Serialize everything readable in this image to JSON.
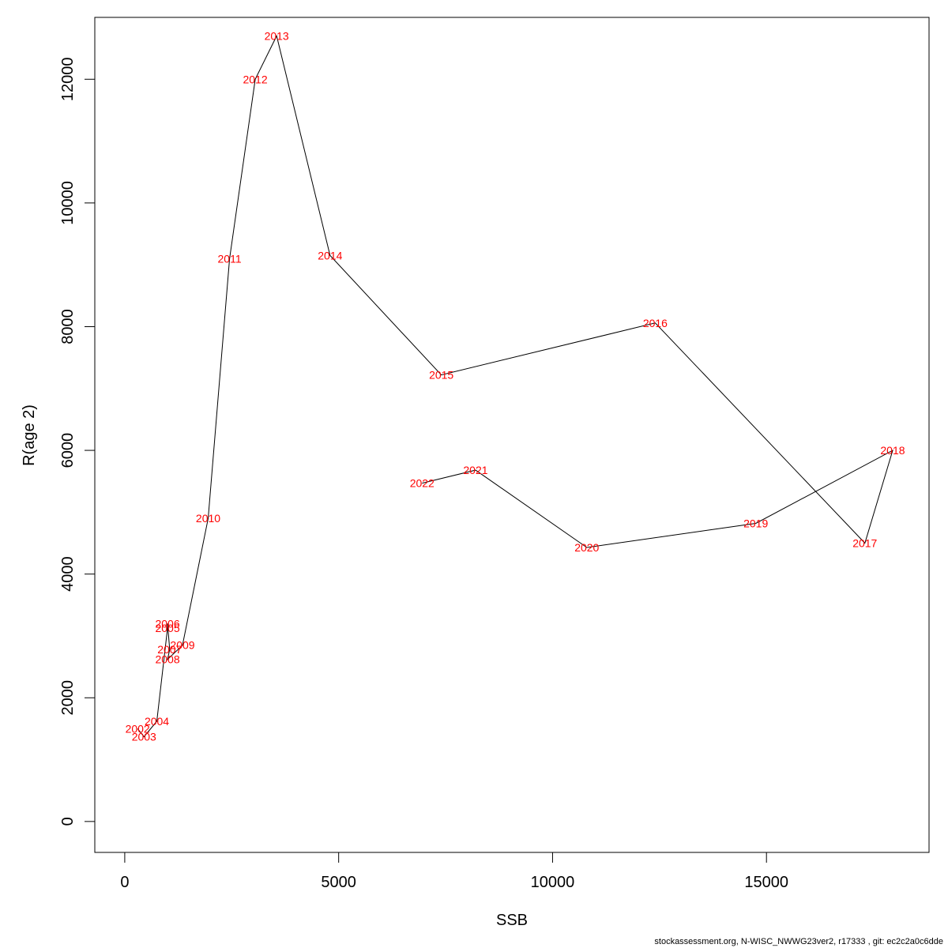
{
  "chart_data": {
    "type": "line",
    "title": "",
    "xlabel": "SSB",
    "ylabel": "R(age 2)",
    "xlim": [
      -700,
      18800
    ],
    "ylim": [
      -500,
      13000
    ],
    "xticks": [
      0,
      5000,
      10000,
      15000
    ],
    "yticks": [
      0,
      2000,
      4000,
      6000,
      8000,
      10000,
      12000
    ],
    "grid": false,
    "label_color": "#ff0000",
    "line_color": "#000000",
    "points": [
      {
        "label": "2002",
        "x": 300,
        "y": 1500
      },
      {
        "label": "2003",
        "x": 450,
        "y": 1370
      },
      {
        "label": "2004",
        "x": 750,
        "y": 1620
      },
      {
        "label": "2005",
        "x": 1000,
        "y": 3130
      },
      {
        "label": "2006",
        "x": 1000,
        "y": 3200
      },
      {
        "label": "2007",
        "x": 1050,
        "y": 2780
      },
      {
        "label": "2008",
        "x": 1000,
        "y": 2620
      },
      {
        "label": "2009",
        "x": 1350,
        "y": 2850
      },
      {
        "label": "2010",
        "x": 1950,
        "y": 4900
      },
      {
        "label": "2011",
        "x": 2450,
        "y": 9100
      },
      {
        "label": "2012",
        "x": 3050,
        "y": 12000
      },
      {
        "label": "2013",
        "x": 3550,
        "y": 12700
      },
      {
        "label": "2014",
        "x": 4800,
        "y": 9150
      },
      {
        "label": "2015",
        "x": 7400,
        "y": 7220
      },
      {
        "label": "2016",
        "x": 12400,
        "y": 8060
      },
      {
        "label": "2017",
        "x": 17300,
        "y": 4500
      },
      {
        "label": "2018",
        "x": 17950,
        "y": 6000
      },
      {
        "label": "2019",
        "x": 14750,
        "y": 4820
      },
      {
        "label": "2020",
        "x": 10800,
        "y": 4430
      },
      {
        "label": "2021",
        "x": 8200,
        "y": 5680
      },
      {
        "label": "2022",
        "x": 6950,
        "y": 5470
      }
    ]
  },
  "footer": "stockassessment.org, N-WISC_NWWG23ver2, r17333 , git: ec2c2a0c6dde"
}
